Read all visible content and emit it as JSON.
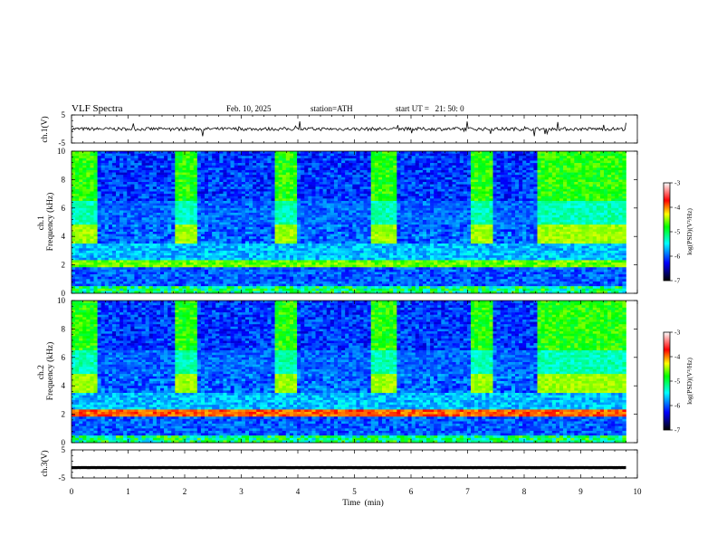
{
  "header": {
    "title": "VLF Spectra",
    "date": "Feb. 10, 2025",
    "station": "station=ATH",
    "start": "start UT =   21: 50: 0"
  },
  "colors": {
    "background": "#ffffff",
    "spectrogram_floor": "#000080",
    "waveform_line": "#000000",
    "colorbar_stops": [
      "#000000",
      "#0000ff",
      "#00ffff",
      "#00ff00",
      "#ffff00",
      "#ff0000",
      "#ffffff"
    ]
  },
  "chart_data": [
    {
      "type": "line",
      "panel": "ch1-waveform",
      "ylabel": "ch.1(V)",
      "ylim": [
        -5,
        5
      ],
      "yticks": [
        "5",
        "-5"
      ],
      "xlim": [
        0,
        10
      ],
      "series": [
        {
          "x": [
            0,
            9.8
          ],
          "y": [
            0,
            0
          ]
        }
      ]
    },
    {
      "type": "heatmap",
      "panel": "ch1-spectrogram",
      "ylabel": "ch.1 Frequency (kHz)",
      "ylim": [
        0,
        10
      ],
      "yticks": [
        "0",
        "2",
        "4",
        "6",
        "8",
        "10"
      ],
      "xlim": [
        0,
        10
      ],
      "data_extent_min": 9.8,
      "colorbar": {
        "label": "log(PSD)(V²/Hz)",
        "range": [
          -7,
          -3
        ],
        "ticks": [
          "-3",
          "-4",
          "-5",
          "-6",
          "-7"
        ]
      },
      "pulse_intervals_min": [
        [
          0.0,
          0.45
        ],
        [
          1.82,
          2.22
        ],
        [
          3.58,
          3.98
        ],
        [
          5.3,
          5.72
        ],
        [
          7.05,
          7.45
        ],
        [
          8.2,
          9.8
        ]
      ]
    },
    {
      "type": "heatmap",
      "panel": "ch2-spectrogram",
      "ylabel": "ch.2 Frequency (kHz)",
      "ylim": [
        0,
        10
      ],
      "yticks": [
        "0",
        "2",
        "4",
        "6",
        "8",
        "10"
      ],
      "xlim": [
        0,
        10
      ],
      "data_extent_min": 9.8,
      "colorbar": {
        "label": "log(PSD)(V²/Hz)",
        "range": [
          -7,
          -3
        ],
        "ticks": [
          "-3",
          "-4",
          "-5",
          "-6",
          "-7"
        ]
      },
      "pulse_intervals_min": [
        [
          0.0,
          0.45
        ],
        [
          1.82,
          2.22
        ],
        [
          3.58,
          3.98
        ],
        [
          5.3,
          5.72
        ],
        [
          7.05,
          7.45
        ],
        [
          8.2,
          9.8
        ]
      ]
    },
    {
      "type": "line",
      "panel": "ch3-waveform",
      "ylabel": "ch.3(V)",
      "ylim": [
        -5,
        5
      ],
      "yticks": [
        "5",
        "-5"
      ],
      "xlim": [
        0,
        10
      ],
      "series": [
        {
          "x": [
            0,
            9.8
          ],
          "y": [
            -1.3,
            -1.3
          ]
        }
      ]
    }
  ],
  "x_axis": {
    "label": "Time  (min)",
    "ticks": [
      "0",
      "1",
      "2",
      "3",
      "4",
      "5",
      "6",
      "7",
      "8",
      "9",
      "10"
    ]
  }
}
